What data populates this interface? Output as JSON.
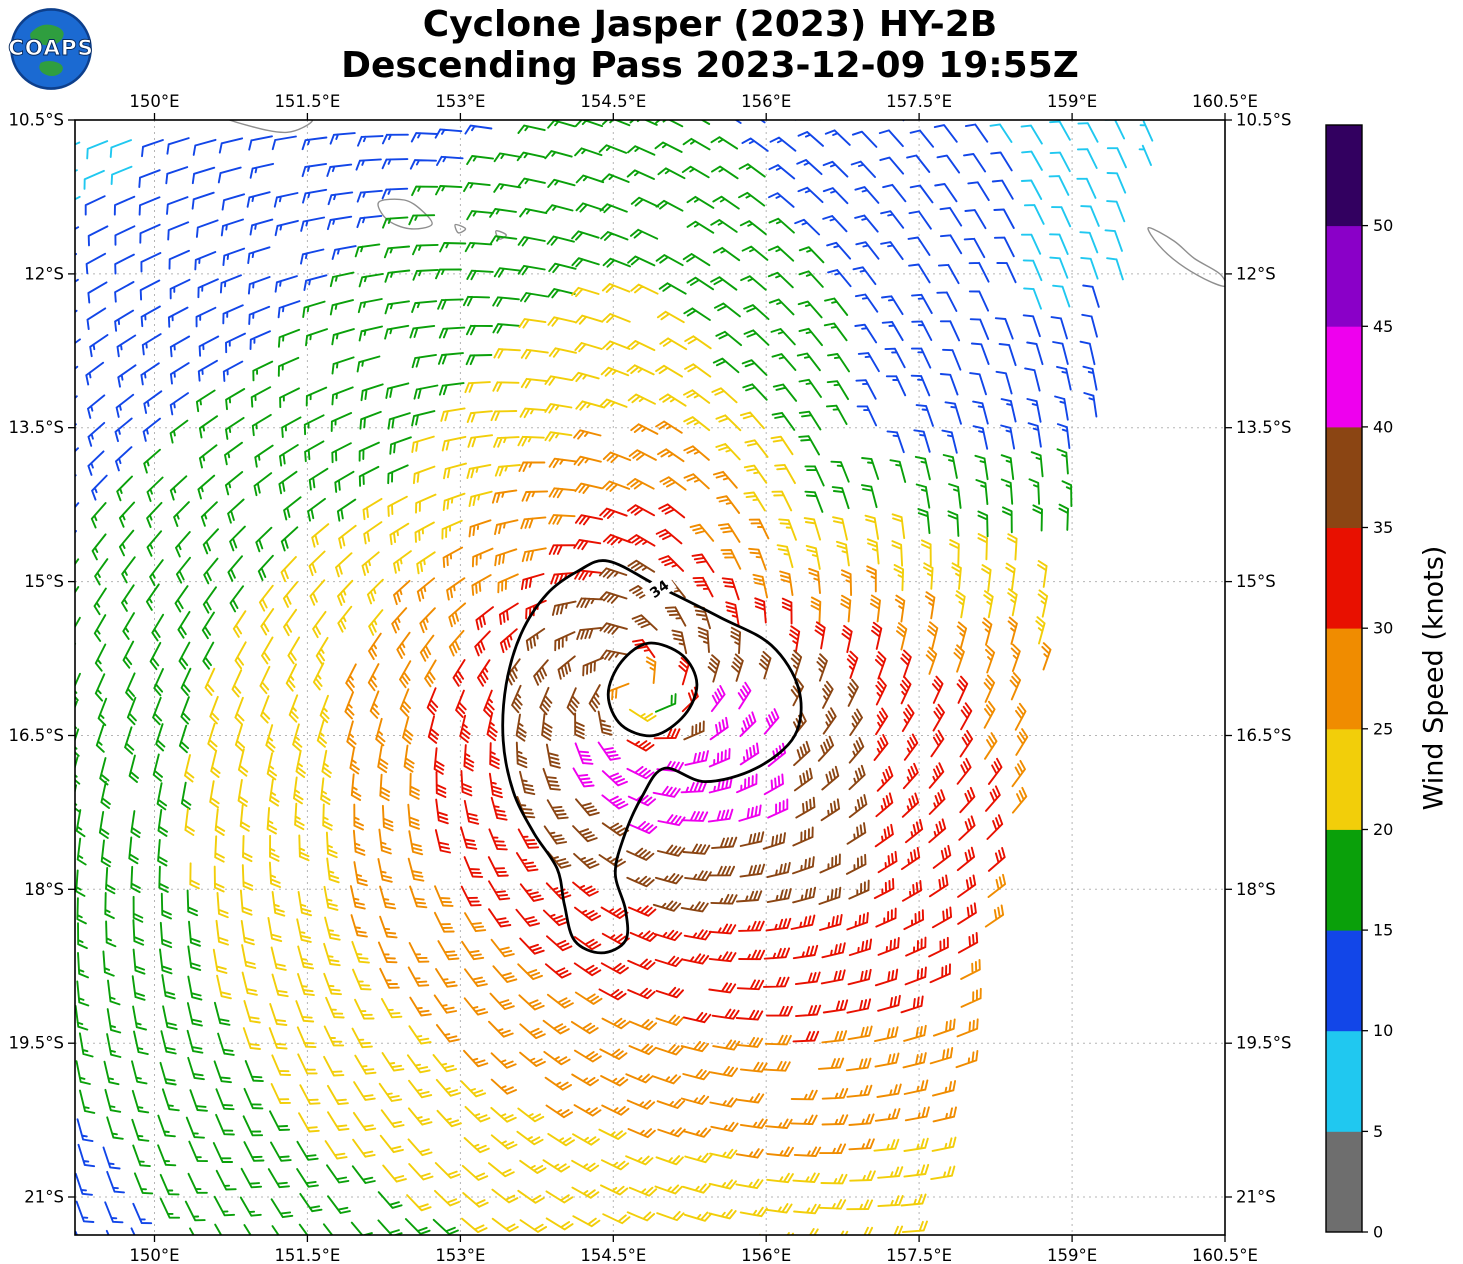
{
  "logo": {
    "text": "COAPS"
  },
  "title": {
    "line1": "Cyclone Jasper (2023) HY-2B",
    "line2": "Descending Pass 2023-12-09 19:55Z"
  },
  "axes": {
    "lon_tick_values": [
      150,
      151.5,
      153,
      154.5,
      156,
      157.5,
      159,
      160.5
    ],
    "lon_tick_labels": [
      "150°E",
      "151.5°E",
      "153°E",
      "154.5°E",
      "156°E",
      "157.5°E",
      "159°E",
      "160.5°E"
    ],
    "lat_tick_values": [
      -10.5,
      -12,
      -13.5,
      -15,
      -16.5,
      -18,
      -19.5,
      -21
    ],
    "lat_tick_labels": [
      "10.5°S",
      "12°S",
      "13.5°S",
      "15°S",
      "16.5°S",
      "18°S",
      "19.5°S",
      "21°S"
    ]
  },
  "colorbar": {
    "label": "Wind Speed (knots)",
    "tick_labels": [
      "0",
      "5",
      "10",
      "15",
      "20",
      "25",
      "30",
      "35",
      "40",
      "45",
      "50"
    ]
  },
  "chart_data": {
    "type": "wind_barb_map",
    "title": "Cyclone Jasper (2023) HY-2B",
    "subtitle": "Descending Pass 2023-12-09 19:55Z",
    "satellite": "HY-2B",
    "units": "knots",
    "lon_range_deg_e": [
      149.22,
      160.5
    ],
    "lat_range_deg_s": [
      10.5,
      21.37
    ],
    "cyclone_center": {
      "lon_e": 154.7,
      "lat_s": 16.05
    },
    "speed_profile": {
      "radius_deg": [
        0,
        0.3,
        0.6,
        1.0,
        1.5,
        2.0,
        2.6,
        3.3,
        4.0,
        4.8,
        5.6,
        6.6,
        7.8,
        9.5,
        12
      ],
      "speed_kt": [
        14,
        30,
        40,
        40,
        35.5,
        32,
        28.5,
        25,
        22.5,
        19.8,
        17.5,
        15,
        11,
        8,
        5
      ]
    },
    "azimuthal_multiplier": {
      "azimuth_deg": [
        -180,
        -135,
        -90,
        -45,
        0,
        45,
        90,
        135,
        180
      ],
      "mult": [
        0.95,
        1.08,
        1.15,
        1.35,
        1.18,
        0.55,
        0.92,
        0.78,
        0.95
      ]
    },
    "rotation": "clockwise",
    "inflow_deg": 22,
    "barb_grid_spacing_deg": 0.27,
    "swath_right_edge": {
      "lon_at_lat_10_5s": 159.9,
      "lon_at_lat_21_35s": 157.55
    },
    "isotach_contour_kt": 34,
    "isotach_label": "34",
    "speed_bands_kt": [
      [
        0,
        5
      ],
      [
        5,
        10
      ],
      [
        10,
        15
      ],
      [
        15,
        20
      ],
      [
        20,
        25
      ],
      [
        25,
        30
      ],
      [
        30,
        35
      ],
      [
        35,
        40
      ],
      [
        40,
        45
      ],
      [
        45,
        50
      ],
      [
        50,
        55
      ]
    ],
    "band_colors": [
      "#6E6E6E",
      "#20C8F0",
      "#1246E8",
      "#0AA00A",
      "#F2CE0A",
      "#F08C00",
      "#E81000",
      "#8B4513",
      "#EE00EE",
      "#8A00C8",
      "#320060"
    ],
    "contour_outer": [
      [
        154.45,
        14.8
      ],
      [
        154.95,
        15.05
      ],
      [
        155.55,
        15.35
      ],
      [
        156.05,
        15.62
      ],
      [
        156.32,
        16.05
      ],
      [
        156.28,
        16.5
      ],
      [
        155.9,
        16.82
      ],
      [
        155.4,
        16.95
      ],
      [
        155.0,
        16.82
      ],
      [
        154.78,
        17.1
      ],
      [
        154.6,
        17.5
      ],
      [
        154.52,
        17.85
      ],
      [
        154.62,
        18.2
      ],
      [
        154.62,
        18.5
      ],
      [
        154.38,
        18.62
      ],
      [
        154.12,
        18.5
      ],
      [
        154.02,
        18.15
      ],
      [
        153.95,
        17.8
      ],
      [
        153.72,
        17.45
      ],
      [
        153.52,
        17.05
      ],
      [
        153.42,
        16.55
      ],
      [
        153.45,
        16.0
      ],
      [
        153.6,
        15.5
      ],
      [
        153.85,
        15.12
      ],
      [
        154.15,
        14.9
      ]
    ],
    "contour_inner": [
      [
        154.85,
        15.6
      ],
      [
        155.18,
        15.72
      ],
      [
        155.32,
        16.0
      ],
      [
        155.2,
        16.3
      ],
      [
        154.9,
        16.5
      ],
      [
        154.58,
        16.4
      ],
      [
        154.45,
        16.1
      ],
      [
        154.58,
        15.78
      ]
    ],
    "coastlines": [
      [
        [
          150.55,
          10.42
        ],
        [
          150.9,
          10.55
        ],
        [
          151.3,
          10.62
        ],
        [
          151.55,
          10.5
        ],
        [
          151.3,
          10.44
        ],
        [
          150.9,
          10.42
        ]
      ],
      [
        [
          152.2,
          11.3
        ],
        [
          152.45,
          11.28
        ],
        [
          152.62,
          11.38
        ],
        [
          152.72,
          11.52
        ],
        [
          152.5,
          11.56
        ],
        [
          152.28,
          11.47
        ]
      ],
      [
        [
          152.95,
          11.52
        ],
        [
          153.05,
          11.56
        ],
        [
          152.98,
          11.6
        ]
      ],
      [
        [
          153.35,
          11.58
        ],
        [
          153.45,
          11.62
        ],
        [
          153.38,
          11.66
        ]
      ],
      [
        [
          159.75,
          11.55
        ],
        [
          160.0,
          11.68
        ],
        [
          160.2,
          11.85
        ],
        [
          160.45,
          12.0
        ],
        [
          160.5,
          12.12
        ],
        [
          160.3,
          12.05
        ],
        [
          160.05,
          11.9
        ],
        [
          159.85,
          11.72
        ]
      ]
    ]
  }
}
